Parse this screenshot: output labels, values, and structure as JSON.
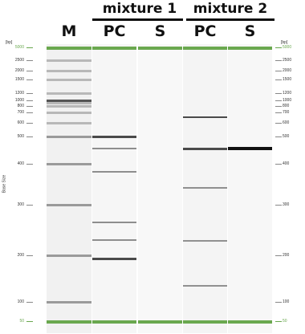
{
  "header": {
    "groups": [
      {
        "id": "mix1",
        "label": "mixture 1"
      },
      {
        "id": "mix2",
        "label": "mixture 2"
      }
    ],
    "lanes": [
      {
        "id": "M",
        "label": "M"
      },
      {
        "id": "PC1",
        "label": "PC"
      },
      {
        "id": "S1",
        "label": "S"
      },
      {
        "id": "PC2",
        "label": "PC"
      },
      {
        "id": "S2",
        "label": "S"
      }
    ]
  },
  "axis": {
    "unit_label": "[bp]",
    "title": "Base Size",
    "ticks_left": [
      "5000",
      "2500",
      "2000",
      "1500",
      "1200",
      "1000",
      "800",
      "700",
      "600",
      "500",
      "400",
      "300",
      "200",
      "100",
      "50"
    ],
    "ticks_right": [
      "5000",
      "2500",
      "2000",
      "1500",
      "1200",
      "1000",
      "800",
      "700",
      "600",
      "500",
      "400",
      "300",
      "200",
      "100",
      "50"
    ]
  },
  "gel": {
    "ladder_color": "#6aa84f",
    "ladder_bands_bp": [
      5000,
      2500,
      2000,
      1500,
      1200,
      1000,
      800,
      700,
      600,
      500,
      400,
      300,
      200,
      100
    ],
    "lanes_bands_bp": {
      "M": [
        5000,
        2500,
        2000,
        1500,
        1200,
        1000,
        900,
        800,
        700,
        600,
        500,
        400,
        300,
        200,
        100,
        50
      ],
      "PC1": [
        5000,
        500,
        450,
        380,
        260,
        230,
        195,
        50
      ],
      "S1": [
        5000,
        50
      ],
      "PC2": [
        5000,
        650,
        450,
        340,
        225,
        130,
        50
      ],
      "S2": [
        5000,
        450,
        50
      ]
    }
  }
}
